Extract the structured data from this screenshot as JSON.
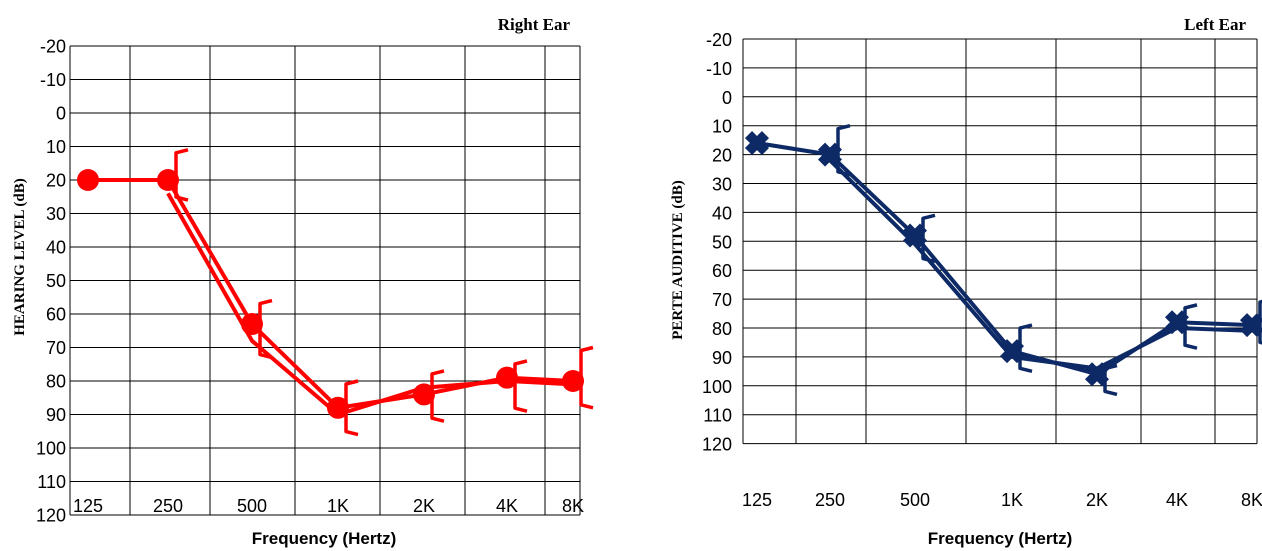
{
  "chart_data": [
    {
      "type": "line",
      "title": "Right Ear",
      "xlabel": "Frequency (Hertz)",
      "ylabel": "HEARING LEVEL (dB)",
      "x_ticks": [
        "125",
        "250",
        "500",
        "1K",
        "2K",
        "4K",
        "8K"
      ],
      "y_ticks": [
        "-20",
        "-10",
        "0",
        "10",
        "20",
        "30",
        "40",
        "50",
        "60",
        "70",
        "80",
        "90",
        "100",
        "110",
        "120"
      ],
      "ylim": [
        -20,
        120
      ],
      "y_inverted": true,
      "grid": true,
      "color": "#ff0000",
      "marker": "circle",
      "series": [
        {
          "x": [
            "125",
            "250",
            "500",
            "1K",
            "2K",
            "4K",
            "8K"
          ],
          "values": [
            20,
            20,
            63,
            88,
            84,
            79,
            80
          ]
        },
        {
          "x": [
            "250",
            "500",
            "1K",
            "2K",
            "4K",
            "8K"
          ],
          "values": [
            24,
            68,
            90,
            82,
            80,
            81
          ]
        }
      ],
      "brackets": [
        {
          "x": "250",
          "values": [
            11,
            26
          ]
        },
        {
          "x": "500",
          "values": [
            56,
            73
          ]
        },
        {
          "x": "1K",
          "values": [
            80,
            96
          ]
        },
        {
          "x": "2K",
          "values": [
            77,
            92
          ]
        },
        {
          "x": "4K",
          "values": [
            74,
            89
          ]
        },
        {
          "x": "8K",
          "values": [
            70,
            88
          ]
        }
      ]
    },
    {
      "type": "line",
      "title": "Left Ear",
      "xlabel": "Frequency (Hertz)",
      "ylabel": "PERTE AUDITIVE (dB)",
      "x_ticks": [
        "125",
        "250",
        "500",
        "1K",
        "2K",
        "4K",
        "8K"
      ],
      "y_ticks": [
        "-20",
        "-10",
        "0",
        "10",
        "20",
        "30",
        "40",
        "50",
        "60",
        "70",
        "80",
        "90",
        "100",
        "110",
        "120"
      ],
      "ylim": [
        -20,
        120
      ],
      "y_inverted": true,
      "grid": true,
      "color": "#0d2a66",
      "marker": "cross",
      "series": [
        {
          "x": [
            "125",
            "250",
            "500",
            "1K",
            "2K",
            "4K",
            "8K"
          ],
          "values": [
            16,
            20,
            48,
            88,
            96,
            78,
            79
          ]
        },
        {
          "x": [
            "250",
            "500",
            "1K",
            "2K",
            "4K",
            "8K"
          ],
          "values": [
            22,
            51,
            90,
            94,
            80,
            81
          ]
        }
      ],
      "brackets": [
        {
          "x": "250",
          "values": [
            10,
            27
          ]
        },
        {
          "x": "500",
          "values": [
            41,
            57
          ]
        },
        {
          "x": "1K",
          "values": [
            79,
            95
          ]
        },
        {
          "x": "2K",
          "values": [
            93,
            103
          ]
        },
        {
          "x": "4K",
          "values": [
            72,
            87
          ]
        },
        {
          "x": "8K",
          "values": [
            70,
            86
          ]
        }
      ]
    }
  ]
}
